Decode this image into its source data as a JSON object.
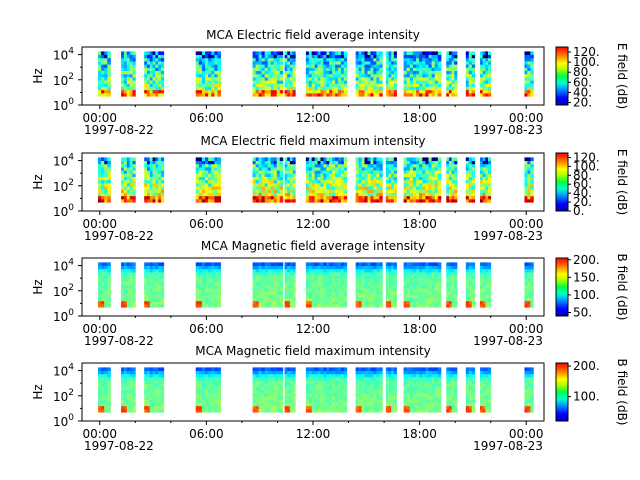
{
  "chart_data": [
    {
      "type": "heatmap",
      "title": "MCA  Electric field average intensity",
      "ylabel": "Hz",
      "colorbar_label": "E field (dB)",
      "colorbar_ticks": [
        "20.",
        "40.",
        "60.",
        "80.",
        "100.",
        "120."
      ],
      "colorbar_range": [
        15,
        130
      ],
      "y_ticks": [
        {
          "base": "10",
          "exp": "0"
        },
        {
          "base": "10",
          "exp": "2"
        },
        {
          "base": "10",
          "exp": "4"
        }
      ],
      "x_ticks": [
        "00:00",
        "06:00",
        "12:00",
        "18:00",
        "00:00"
      ],
      "x_dates": [
        "1997-08-22",
        "1997-08-23"
      ],
      "x_range_hours": [
        -1.0,
        25.0
      ],
      "y_range_log10": [
        0,
        4.6
      ],
      "base_intensity": 0.55
    },
    {
      "type": "heatmap",
      "title": "MCA  Electric field maximum intensity",
      "ylabel": "Hz",
      "colorbar_label": "E field (dB)",
      "colorbar_ticks": [
        "0.",
        "20.",
        "40.",
        "60.",
        "80.",
        "100.",
        "120."
      ],
      "colorbar_range": [
        0,
        130
      ],
      "y_ticks": [
        {
          "base": "10",
          "exp": "0"
        },
        {
          "base": "10",
          "exp": "2"
        },
        {
          "base": "10",
          "exp": "4"
        }
      ],
      "x_ticks": [
        "00:00",
        "06:00",
        "12:00",
        "18:00",
        "00:00"
      ],
      "x_dates": [
        "1997-08-22",
        "1997-08-23"
      ],
      "x_range_hours": [
        -1.0,
        25.0
      ],
      "y_range_log10": [
        0,
        4.6
      ],
      "base_intensity": 0.62
    },
    {
      "type": "heatmap",
      "title": "MCA  Magnetic field average intensity",
      "ylabel": "Hz",
      "colorbar_label": "B field (dB)",
      "colorbar_ticks": [
        "50.",
        "100.",
        "150.",
        "200."
      ],
      "colorbar_range": [
        40,
        205
      ],
      "y_ticks": [
        {
          "base": "10",
          "exp": "0"
        },
        {
          "base": "10",
          "exp": "2"
        },
        {
          "base": "10",
          "exp": "4"
        }
      ],
      "x_ticks": [
        "00:00",
        "06:00",
        "12:00",
        "18:00",
        "00:00"
      ],
      "x_dates": [
        "1997-08-22",
        "1997-08-23"
      ],
      "x_range_hours": [
        -1.0,
        25.0
      ],
      "y_range_log10": [
        0,
        4.6
      ],
      "base_intensity": 0.5
    },
    {
      "type": "heatmap",
      "title": "MCA  Magnetic field maximum intensity",
      "ylabel": "Hz",
      "colorbar_label": "B field (dB)",
      "colorbar_ticks": [
        "100.",
        "200."
      ],
      "colorbar_range": [
        20,
        210
      ],
      "y_ticks": [
        {
          "base": "10",
          "exp": "0"
        },
        {
          "base": "10",
          "exp": "2"
        },
        {
          "base": "10",
          "exp": "4"
        }
      ],
      "x_ticks": [
        "00:00",
        "06:00",
        "12:00",
        "18:00",
        "00:00"
      ],
      "x_dates": [
        "1997-08-22",
        "1997-08-23"
      ],
      "x_range_hours": [
        -1.0,
        25.0
      ],
      "y_range_log10": [
        0,
        4.6
      ],
      "base_intensity": 0.55
    }
  ],
  "data_segments_hours": [
    [
      -0.1,
      0.6
    ],
    [
      1.2,
      2.0
    ],
    [
      2.5,
      3.6
    ],
    [
      5.4,
      6.8
    ],
    [
      8.6,
      10.3
    ],
    [
      10.4,
      11.0
    ],
    [
      11.6,
      13.9
    ],
    [
      14.4,
      15.9
    ],
    [
      16.1,
      16.7
    ],
    [
      17.1,
      19.2
    ],
    [
      19.5,
      20.1
    ],
    [
      20.6,
      21.1
    ],
    [
      21.4,
      22.0
    ],
    [
      23.9,
      24.4
    ]
  ]
}
